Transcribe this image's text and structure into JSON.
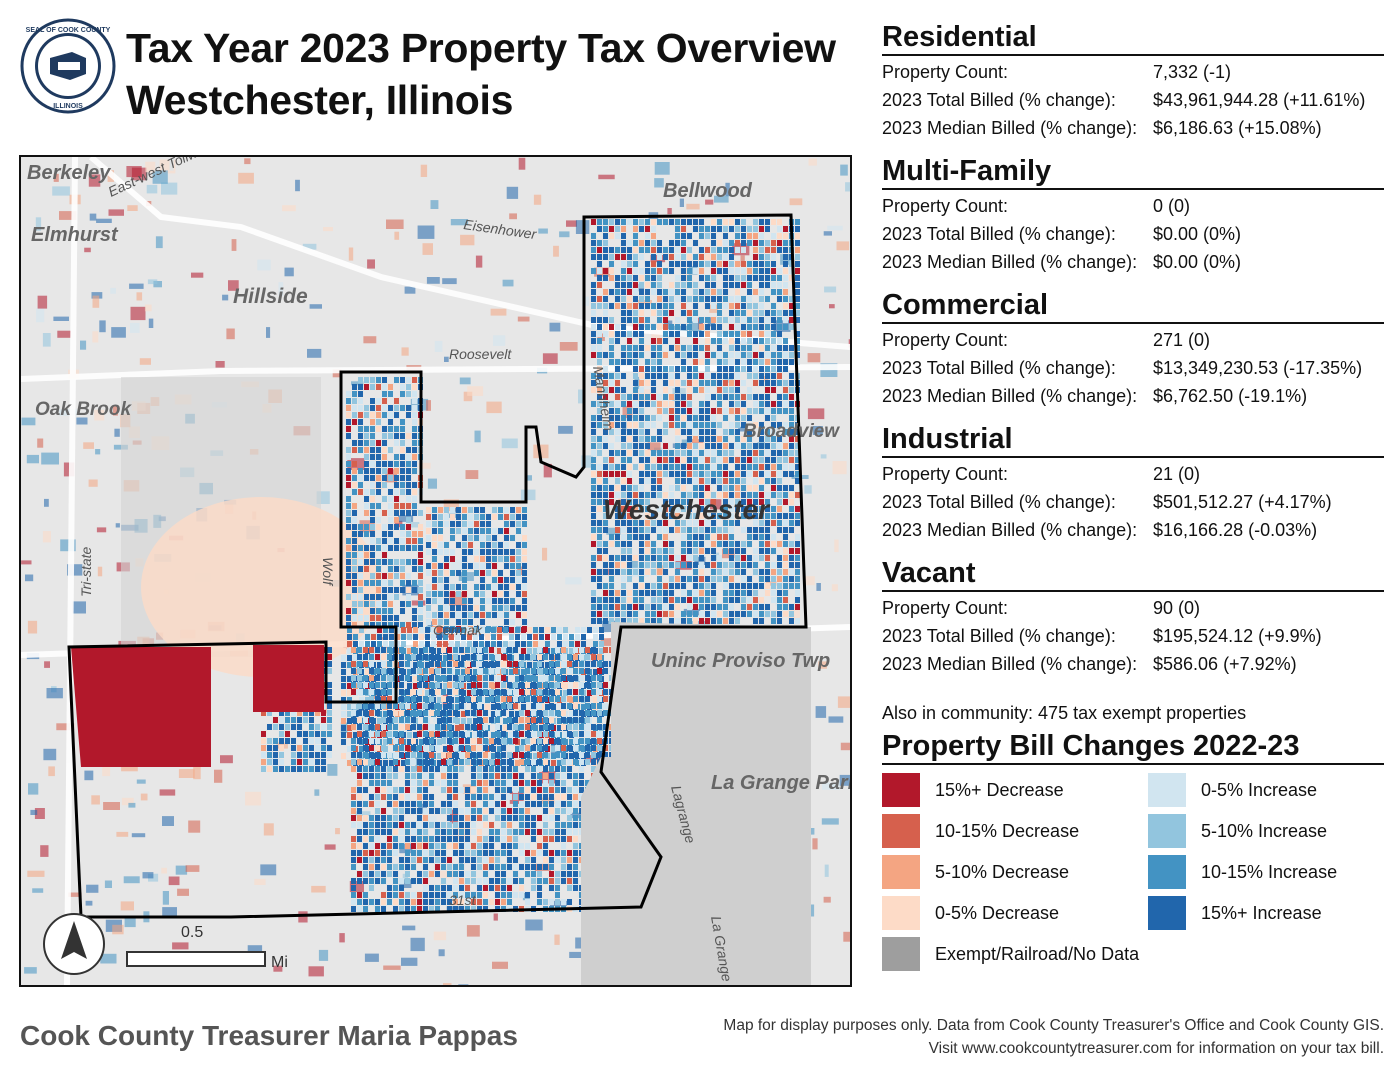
{
  "header": {
    "title_line1": "Tax Year 2023 Property Tax Overview",
    "title_line2": "Westchester, Illinois",
    "seal_text": "SEAL OF COOK COUNTY ILLINOIS"
  },
  "map": {
    "community_label": "Westchester",
    "place_labels": [
      "Berkeley",
      "Elmhurst",
      "Hillside",
      "Bellwood",
      "Oak Brook",
      "Broadview",
      "Uninc Proviso Twp",
      "La Grange Park"
    ],
    "road_labels": [
      "East-west Tollway",
      "Eisenhower",
      "Roosevelt",
      "Mannheim",
      "Wolf",
      "Cermak",
      "Tri-state",
      "Lagrange",
      "La Grange",
      "31st"
    ],
    "scale_value": "0.5",
    "scale_unit": "Mi",
    "north_arrow_icon": "north-arrow-icon"
  },
  "sections": [
    {
      "name": "Residential",
      "count_label": "Property Count:",
      "count": "7,332 (-1)",
      "total_label": "2023 Total Billed (% change):",
      "total": "$43,961,944.28 (+11.61%)",
      "median_label": "2023 Median Billed (% change):",
      "median": "$6,186.63 (+15.08%)"
    },
    {
      "name": "Multi-Family",
      "count_label": "Property Count:",
      "count": "0 (0)",
      "total_label": "2023 Total Billed (% change):",
      "total": "$0.00 (0%)",
      "median_label": "2023 Median Billed (% change):",
      "median": "$0.00 (0%)"
    },
    {
      "name": "Commercial",
      "count_label": "Property Count:",
      "count": "271 (0)",
      "total_label": "2023 Total Billed (% change):",
      "total": "$13,349,230.53 (-17.35%)",
      "median_label": "2023 Median Billed (% change):",
      "median": "$6,762.50 (-19.1%)"
    },
    {
      "name": "Industrial",
      "count_label": "Property Count:",
      "count": "21 (0)",
      "total_label": "2023 Total Billed (% change):",
      "total": "$501,512.27 (+4.17%)",
      "median_label": "2023 Median Billed (% change):",
      "median": "$16,166.28 (-0.03%)"
    },
    {
      "name": "Vacant",
      "count_label": "Property Count:",
      "count": "90 (0)",
      "total_label": "2023 Total Billed (% change):",
      "total": "$195,524.12 (+9.9%)",
      "median_label": "2023 Median Billed (% change):",
      "median": "$586.06 (+7.92%)"
    }
  ],
  "exempt_note": "Also in community: 475 tax exempt properties",
  "legend": {
    "title": "Property Bill Changes 2022-23",
    "items": [
      {
        "label": "15%+ Decrease",
        "color": "#b2182b"
      },
      {
        "label": "10-15% Decrease",
        "color": "#d6604d"
      },
      {
        "label": "5-10% Decrease",
        "color": "#f4a582"
      },
      {
        "label": "0-5% Decrease",
        "color": "#fddbc7"
      },
      {
        "label": "Exempt/Railroad/No Data",
        "color": "#9e9e9e"
      },
      {
        "label": "0-5% Increase",
        "color": "#d1e5f0"
      },
      {
        "label": "5-10% Increase",
        "color": "#92c5de"
      },
      {
        "label": "10-15% Increase",
        "color": "#4393c3"
      },
      {
        "label": "15%+ Increase",
        "color": "#2166ac"
      }
    ]
  },
  "footer": {
    "left": "Cook County Treasurer Maria Pappas",
    "right_line1": "Map for display purposes only. Data from Cook County Treasurer's Office and Cook County GIS.",
    "right_line2": "Visit www.cookcountytreasurer.com for information on your tax bill."
  }
}
